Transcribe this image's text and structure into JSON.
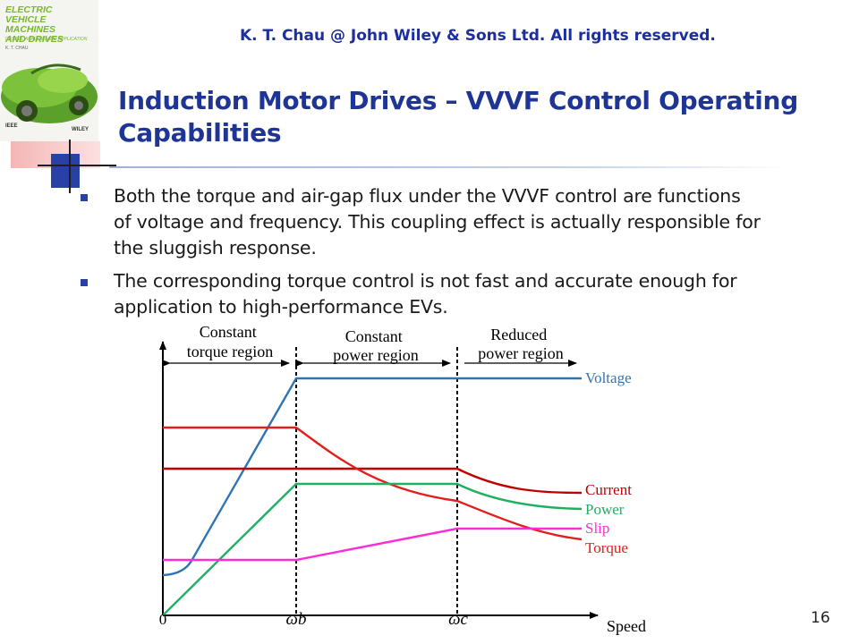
{
  "header": {
    "copyright": "K. T. Chau @ John Wiley & Sons Ltd. All rights reserved.",
    "title_line1": "Induction Motor Drives – VVVF Control Operating",
    "title_line2": "Capabilities"
  },
  "book_cover": {
    "title_lines": [
      "ELECTRIC",
      "VEHICLE MACHINES",
      "AND DRIVES"
    ],
    "subtitle": "DESIGN, ANALYSIS AND APPLICATION",
    "author": "K. T. CHAU",
    "publisher_left": "IEEE",
    "publisher_right": "WILEY"
  },
  "bullets": [
    "Both the torque and air-gap flux under the VVVF control are functions of voltage and frequency. This coupling effect is actually responsible for the sluggish response.",
    "The corresponding torque control is not fast and accurate enough for application to high-performance EVs."
  ],
  "diagram": {
    "regions": [
      {
        "line1": "Constant",
        "line2": "torque region"
      },
      {
        "line1": "Constant",
        "line2": "power region"
      },
      {
        "line1": "Reduced",
        "line2": "power region"
      }
    ],
    "origin_label": "0",
    "x_axis_label": "Speed",
    "omega_b_label": "ωb",
    "omega_c_label": "ωc",
    "curves": [
      {
        "name": "Voltage",
        "color": "#2e75b6"
      },
      {
        "name": "Current",
        "color": "#c00000"
      },
      {
        "name": "Power",
        "color": "#20b060"
      },
      {
        "name": "Slip",
        "color": "#ff2bd6"
      },
      {
        "name": "Torque",
        "color": "#e0201d"
      }
    ]
  },
  "page_number": "16"
}
